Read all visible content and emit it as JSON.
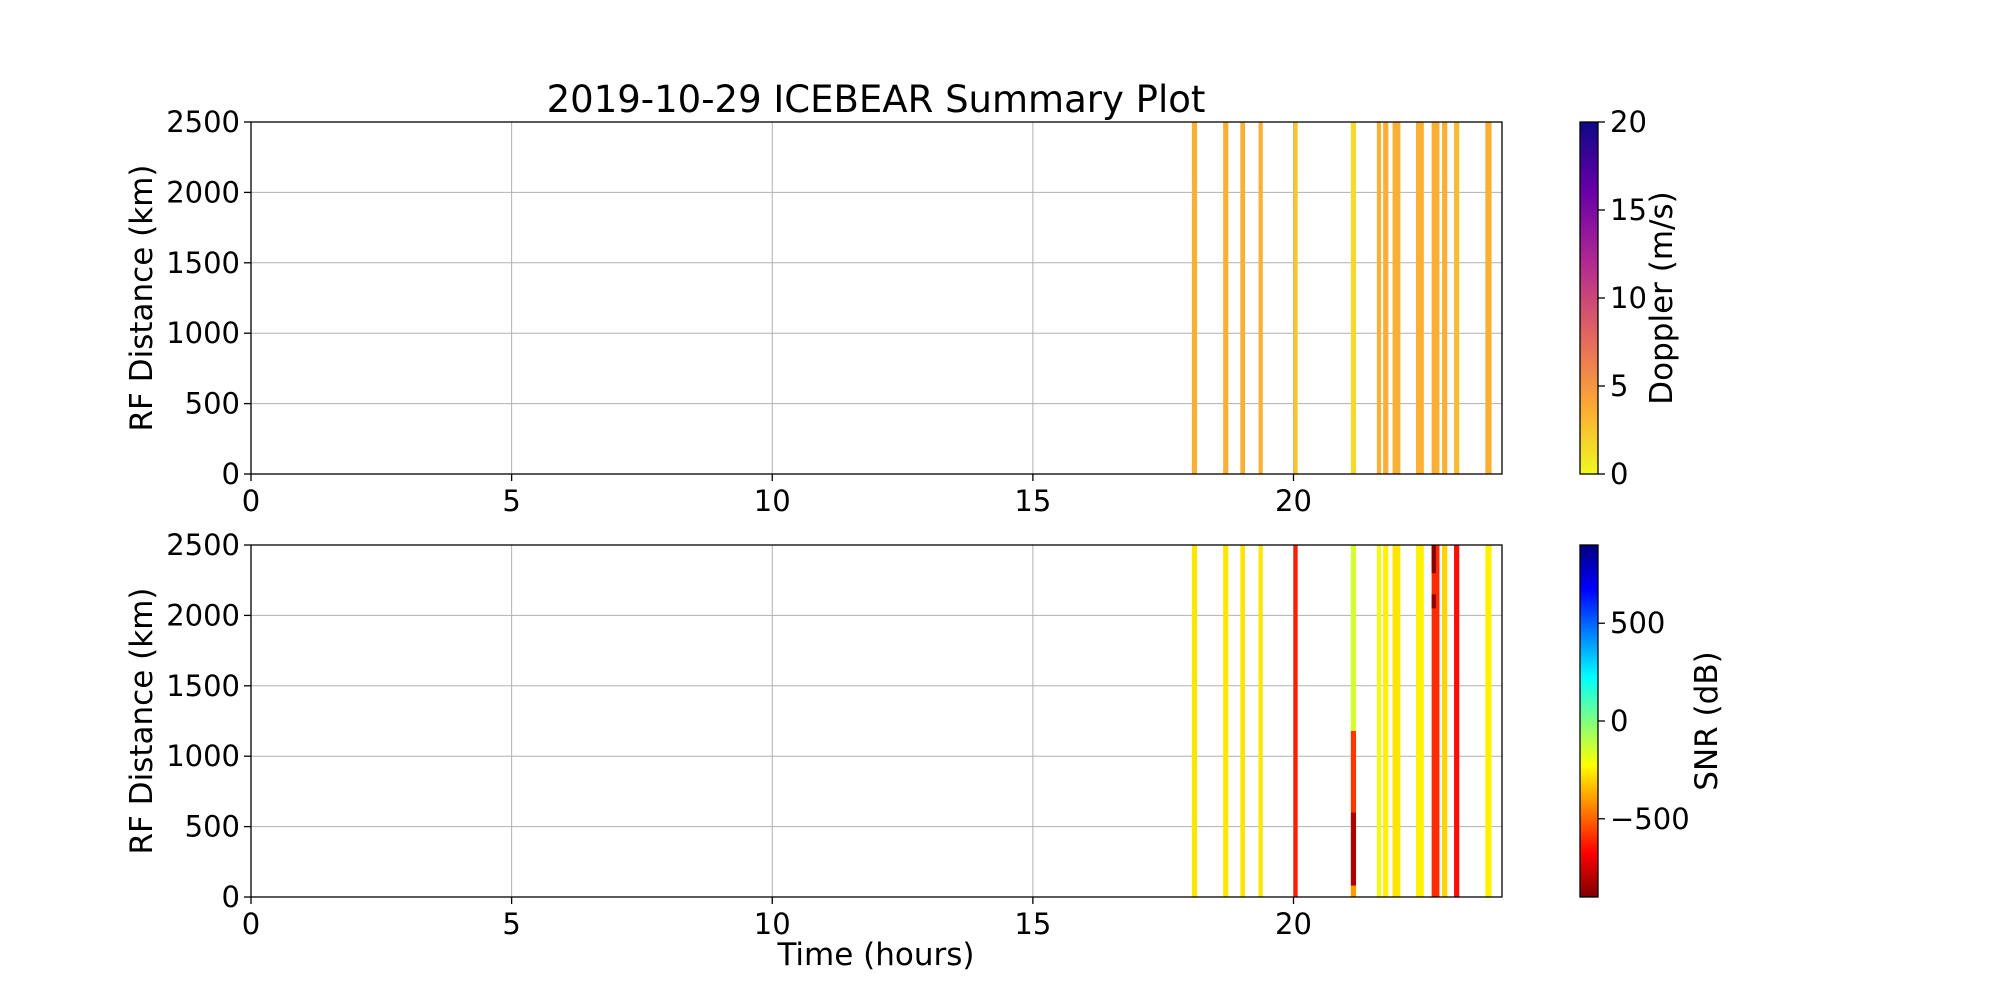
{
  "chart_data": {
    "title": "2019-10-29 ICEBEAR Summary Plot",
    "xlabel": "Time (hours)",
    "xlim": [
      0,
      24
    ],
    "x_ticks": [
      0,
      5,
      10,
      15,
      20
    ],
    "grid": true,
    "panels": [
      {
        "type": "heatmap",
        "ylabel": "RF Distance (km)",
        "ylim": [
          0,
          2500
        ],
        "y_ticks": [
          0,
          500,
          1000,
          1500,
          2000,
          2500
        ],
        "colorbar": {
          "label": "Doppler (m/s)",
          "range": [
            0,
            20
          ],
          "ticks": [
            0,
            5,
            10,
            15,
            20
          ],
          "colormap": "plasma_r",
          "stops": [
            "#f0f921",
            "#fca636",
            "#e16462",
            "#b12a90",
            "#6a00a8",
            "#0d0887"
          ]
        },
        "stripes": [
          {
            "t_start": 18.05,
            "t_end": 18.15,
            "value": 3.5
          },
          {
            "t_start": 18.65,
            "t_end": 18.75,
            "value": 3.5
          },
          {
            "t_start": 18.98,
            "t_end": 19.07,
            "value": 3.5
          },
          {
            "t_start": 19.33,
            "t_end": 19.41,
            "value": 3.5
          },
          {
            "t_start": 20.0,
            "t_end": 20.08,
            "value": 2.5
          },
          {
            "t_start": 21.1,
            "t_end": 21.2,
            "value": 1.5
          },
          {
            "t_start": 21.6,
            "t_end": 21.68,
            "value": 3.5
          },
          {
            "t_start": 21.72,
            "t_end": 21.82,
            "value": 3.5
          },
          {
            "t_start": 21.9,
            "t_end": 22.05,
            "value": 3.5
          },
          {
            "t_start": 22.35,
            "t_end": 22.5,
            "value": 3.5
          },
          {
            "t_start": 22.65,
            "t_end": 22.8,
            "value": 3.5
          },
          {
            "t_start": 22.85,
            "t_end": 22.95,
            "value": 3.5
          },
          {
            "t_start": 23.08,
            "t_end": 23.18,
            "value": 3.0
          },
          {
            "t_start": 23.68,
            "t_end": 23.8,
            "value": 3.5
          }
        ]
      },
      {
        "type": "heatmap",
        "ylabel": "RF Distance (km)",
        "ylim": [
          0,
          2500
        ],
        "y_ticks": [
          0,
          500,
          1000,
          1500,
          2000,
          2500
        ],
        "colorbar": {
          "label": "SNR (dB)",
          "range": [
            -900,
            900
          ],
          "ticks": [
            500,
            0,
            -500
          ],
          "tick_labels": [
            "500",
            "0",
            "−500"
          ],
          "colormap": "jet_r",
          "stops": [
            "#7f0000",
            "#ff0000",
            "#ff8000",
            "#ffff00",
            "#80ff80",
            "#00ffff",
            "#0080ff",
            "#0000ff",
            "#00007f"
          ]
        },
        "stripes": [
          {
            "t_start": 18.05,
            "t_end": 18.15,
            "value": -270
          },
          {
            "t_start": 18.65,
            "t_end": 18.75,
            "value": -270
          },
          {
            "t_start": 18.98,
            "t_end": 19.07,
            "value": -270
          },
          {
            "t_start": 19.33,
            "t_end": 19.41,
            "value": -270
          },
          {
            "t_start": 20.0,
            "t_end": 20.08,
            "value": -620
          },
          {
            "t_start": 21.1,
            "t_end": 21.2,
            "value": -150
          },
          {
            "t_start": 21.6,
            "t_end": 21.68,
            "value": -200
          },
          {
            "t_start": 21.72,
            "t_end": 21.82,
            "value": -250
          },
          {
            "t_start": 21.9,
            "t_end": 22.05,
            "value": -270
          },
          {
            "t_start": 22.35,
            "t_end": 22.5,
            "value": -250
          },
          {
            "t_start": 22.65,
            "t_end": 22.8,
            "value": -600
          },
          {
            "t_start": 22.85,
            "t_end": 22.95,
            "value": -300
          },
          {
            "t_start": 23.08,
            "t_end": 23.18,
            "value": -650
          },
          {
            "t_start": 23.68,
            "t_end": 23.8,
            "value": -250
          }
        ],
        "patches": [
          {
            "t_start": 21.1,
            "t_end": 21.2,
            "y_start": 600,
            "y_end": 1180,
            "value": -580
          },
          {
            "t_start": 21.1,
            "t_end": 21.2,
            "y_start": 80,
            "y_end": 600,
            "value": -820
          },
          {
            "t_start": 21.1,
            "t_end": 21.2,
            "y_start": 0,
            "y_end": 80,
            "value": -400
          },
          {
            "t_start": 22.65,
            "t_end": 22.73,
            "y_start": 2300,
            "y_end": 2500,
            "value": -880
          },
          {
            "t_start": 22.65,
            "t_end": 22.73,
            "y_start": 2050,
            "y_end": 2150,
            "value": -870
          }
        ]
      }
    ]
  }
}
